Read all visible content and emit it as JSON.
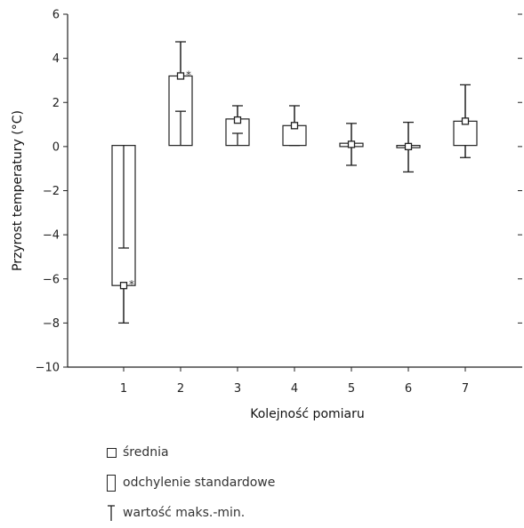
{
  "chart_data": {
    "type": "boxplot",
    "xlabel": "Kolejność pomiaru",
    "ylabel": "Przyrost temperatury (°C)",
    "ylim": [
      -10,
      6
    ],
    "yticks": [
      6,
      4,
      2,
      0,
      -2,
      -4,
      -6,
      -8,
      -10
    ],
    "ytick_labels": [
      "6",
      "4",
      "2",
      "0",
      "−2",
      "−4",
      "−6",
      "−8",
      "−10"
    ],
    "categories": [
      "1",
      "2",
      "3",
      "4",
      "5",
      "6",
      "7"
    ],
    "mean": [
      -6.3,
      3.2,
      1.2,
      0.95,
      0.1,
      0.0,
      1.15
    ],
    "sd_box": [
      [
        -6.3,
        0.05
      ],
      [
        0.05,
        3.2
      ],
      [
        0.05,
        1.25
      ],
      [
        0.05,
        0.95
      ],
      [
        0.0,
        0.15
      ],
      [
        -0.05,
        0.05
      ],
      [
        0.05,
        1.15
      ]
    ],
    "min": [
      -8.0,
      1.6,
      0.6,
      0.05,
      -0.85,
      -1.15,
      -0.5
    ],
    "max": [
      -4.6,
      4.75,
      1.85,
      1.85,
      1.05,
      1.1,
      2.8
    ],
    "significance": [
      "*",
      "*",
      "",
      "",
      "",
      "",
      ""
    ],
    "legend": [
      {
        "symbol": "mean",
        "label": "średnia"
      },
      {
        "symbol": "sd",
        "label": "odchylenie standardowe"
      },
      {
        "symbol": "range",
        "label": "wartość maks.-min."
      }
    ],
    "grid": false
  }
}
